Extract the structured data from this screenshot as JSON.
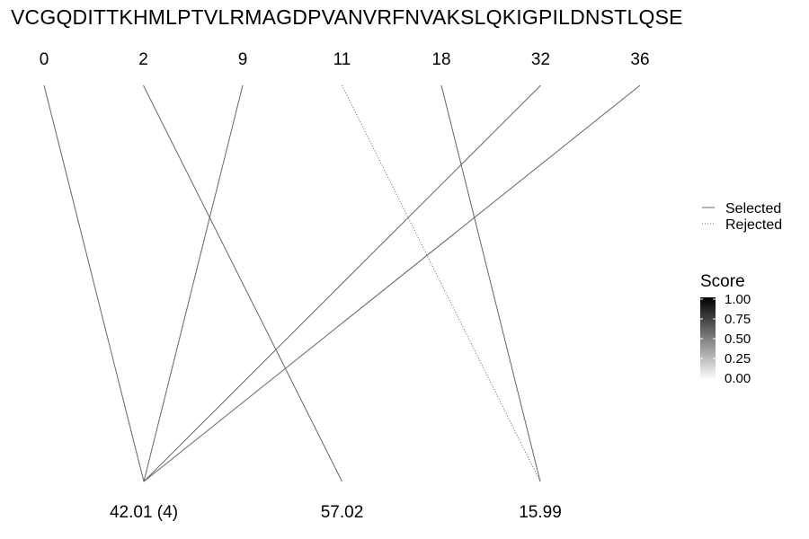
{
  "sequence": "VCGQDITTKHMLPTVLRMAGDPVANVRFNVAKSLQKIGPILDNSTLQSE",
  "top_positions": [
    "0",
    "2",
    "9",
    "11",
    "18",
    "32",
    "36"
  ],
  "bottom_masses": [
    "42.01 (4)",
    "57.02",
    "15.99"
  ],
  "links": [
    {
      "from": "0",
      "to": "42.01 (4)",
      "status": "selected"
    },
    {
      "from": "9",
      "to": "42.01 (4)",
      "status": "selected"
    },
    {
      "from": "32",
      "to": "42.01 (4)",
      "status": "selected"
    },
    {
      "from": "36",
      "to": "42.01 (4)",
      "status": "selected"
    },
    {
      "from": "2",
      "to": "57.02",
      "status": "selected"
    },
    {
      "from": "18",
      "to": "15.99",
      "status": "selected"
    },
    {
      "from": "11",
      "to": "15.99",
      "status": "rejected"
    }
  ],
  "line_color": "#666666",
  "legend": {
    "items": [
      {
        "label": "Selected",
        "style": "solid"
      },
      {
        "label": "Rejected",
        "style": "dotted"
      }
    ]
  },
  "colorbar": {
    "title": "Score",
    "ticks": [
      "1.00",
      "0.75",
      "0.50",
      "0.25",
      "0.00"
    ],
    "color_high": "#000000",
    "color_low": "#ffffff"
  }
}
